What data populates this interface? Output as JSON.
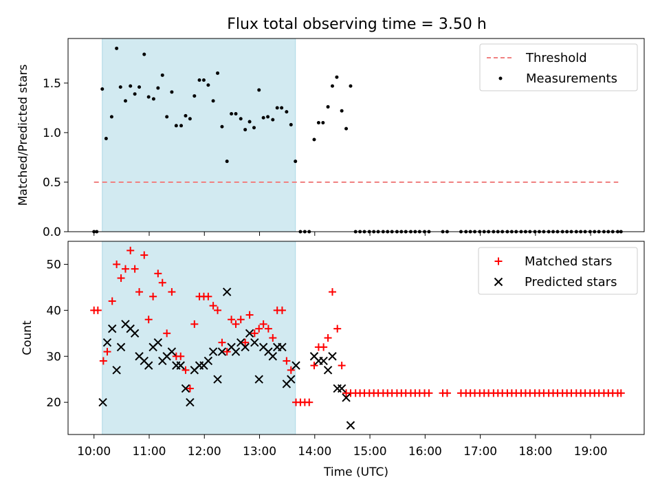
{
  "title": "Flux total observing time = 3.50 h",
  "colors": {
    "threshold": "#f08080",
    "measure": "#000000",
    "matched": "#ff0000",
    "predicted": "#000000",
    "shade": "#add8e6"
  },
  "chart_data": [
    {
      "type": "scatter",
      "ylabel": "Matched/Predicted stars",
      "ylim": [
        0,
        1.95
      ],
      "yticks": [
        {
          "v": 0.0,
          "label": "0.0"
        },
        {
          "v": 0.5,
          "label": "0.5"
        },
        {
          "v": 1.0,
          "label": "1.0"
        },
        {
          "v": 1.5,
          "label": "1.5"
        }
      ],
      "legend": {
        "position": "top-right",
        "threshold_label": "Threshold",
        "measure_label": "Measurements"
      },
      "threshold": {
        "value": 0.5,
        "x_start": 10.0,
        "x_end": 19.5
      },
      "shaded_interval": [
        10.15,
        13.65
      ],
      "measurements": [
        [
          10.0,
          0
        ],
        [
          10.05,
          0
        ],
        [
          10.15,
          1.44
        ],
        [
          10.22,
          0.94
        ],
        [
          10.32,
          1.16
        ],
        [
          10.41,
          1.85
        ],
        [
          10.48,
          1.46
        ],
        [
          10.57,
          1.32
        ],
        [
          10.66,
          1.47
        ],
        [
          10.74,
          1.39
        ],
        [
          10.82,
          1.46
        ],
        [
          10.91,
          1.79
        ],
        [
          10.99,
          1.36
        ],
        [
          11.08,
          1.34
        ],
        [
          11.16,
          1.45
        ],
        [
          11.24,
          1.58
        ],
        [
          11.32,
          1.16
        ],
        [
          11.41,
          1.41
        ],
        [
          11.49,
          1.07
        ],
        [
          11.58,
          1.07
        ],
        [
          11.66,
          1.17
        ],
        [
          11.74,
          1.14
        ],
        [
          11.82,
          1.37
        ],
        [
          11.91,
          1.53
        ],
        [
          11.99,
          1.53
        ],
        [
          12.07,
          1.48
        ],
        [
          12.16,
          1.32
        ],
        [
          12.24,
          1.6
        ],
        [
          12.32,
          1.06
        ],
        [
          12.41,
          0.71
        ],
        [
          12.49,
          1.19
        ],
        [
          12.57,
          1.19
        ],
        [
          12.66,
          1.14
        ],
        [
          12.74,
          1.03
        ],
        [
          12.82,
          1.11
        ],
        [
          12.9,
          1.05
        ],
        [
          12.99,
          1.43
        ],
        [
          13.07,
          1.15
        ],
        [
          13.15,
          1.16
        ],
        [
          13.24,
          1.13
        ],
        [
          13.32,
          1.25
        ],
        [
          13.4,
          1.25
        ],
        [
          13.49,
          1.21
        ],
        [
          13.57,
          1.08
        ],
        [
          13.65,
          0.71
        ],
        [
          13.74,
          0
        ],
        [
          13.82,
          0
        ],
        [
          13.9,
          0
        ],
        [
          13.99,
          0.93
        ],
        [
          14.07,
          1.1
        ],
        [
          14.15,
          1.1
        ],
        [
          14.24,
          1.26
        ],
        [
          14.32,
          1.47
        ],
        [
          14.4,
          1.56
        ],
        [
          14.49,
          1.22
        ],
        [
          14.57,
          1.04
        ],
        [
          14.65,
          1.47
        ],
        [
          14.74,
          0
        ],
        [
          14.82,
          0
        ],
        [
          14.9,
          0
        ],
        [
          14.99,
          0
        ],
        [
          15.07,
          0
        ],
        [
          15.15,
          0
        ],
        [
          15.24,
          0
        ],
        [
          15.32,
          0
        ],
        [
          15.4,
          0
        ],
        [
          15.49,
          0
        ],
        [
          15.57,
          0
        ],
        [
          15.65,
          0
        ],
        [
          15.74,
          0
        ],
        [
          15.82,
          0
        ],
        [
          15.9,
          0
        ],
        [
          15.99,
          0
        ],
        [
          16.07,
          0
        ],
        [
          16.32,
          0
        ],
        [
          16.4,
          0
        ],
        [
          16.65,
          0
        ],
        [
          16.74,
          0
        ],
        [
          16.82,
          0
        ],
        [
          16.9,
          0
        ],
        [
          16.99,
          0
        ],
        [
          17.07,
          0
        ],
        [
          17.15,
          0
        ],
        [
          17.24,
          0
        ],
        [
          17.32,
          0
        ],
        [
          17.4,
          0
        ],
        [
          17.49,
          0
        ],
        [
          17.57,
          0
        ],
        [
          17.65,
          0
        ],
        [
          17.74,
          0
        ],
        [
          17.82,
          0
        ],
        [
          17.9,
          0
        ],
        [
          17.99,
          0
        ],
        [
          18.07,
          0
        ],
        [
          18.15,
          0
        ],
        [
          18.24,
          0
        ],
        [
          18.32,
          0
        ],
        [
          18.4,
          0
        ],
        [
          18.49,
          0
        ],
        [
          18.57,
          0
        ],
        [
          18.65,
          0
        ],
        [
          18.74,
          0
        ],
        [
          18.82,
          0
        ],
        [
          18.9,
          0
        ],
        [
          18.99,
          0
        ],
        [
          19.07,
          0
        ],
        [
          19.15,
          0
        ],
        [
          19.24,
          0
        ],
        [
          19.32,
          0
        ],
        [
          19.4,
          0
        ],
        [
          19.49,
          0
        ],
        [
          19.55,
          0
        ]
      ]
    },
    {
      "type": "scatter",
      "ylabel": "Count",
      "xlabel": "Time (UTC)",
      "ylim": [
        13,
        55
      ],
      "yticks": [
        {
          "v": 20,
          "label": "20"
        },
        {
          "v": 30,
          "label": "30"
        },
        {
          "v": 40,
          "label": "40"
        },
        {
          "v": 50,
          "label": "50"
        }
      ],
      "xticks": [
        {
          "v": 10,
          "label": "10:00"
        },
        {
          "v": 11,
          "label": "11:00"
        },
        {
          "v": 12,
          "label": "12:00"
        },
        {
          "v": 13,
          "label": "13:00"
        },
        {
          "v": 14,
          "label": "14:00"
        },
        {
          "v": 15,
          "label": "15:00"
        },
        {
          "v": 16,
          "label": "16:00"
        },
        {
          "v": 17,
          "label": "17:00"
        },
        {
          "v": 18,
          "label": "18:00"
        },
        {
          "v": 19,
          "label": "19:00"
        }
      ],
      "xlim": [
        9.53,
        19.97
      ],
      "legend": {
        "position": "top-right",
        "matched_label": "Matched stars",
        "predicted_label": "Predicted stars"
      },
      "shaded_interval": [
        10.15,
        13.65
      ],
      "matched": [
        [
          10.0,
          40
        ],
        [
          10.07,
          40
        ],
        [
          10.17,
          29
        ],
        [
          10.24,
          31
        ],
        [
          10.33,
          42
        ],
        [
          10.41,
          50
        ],
        [
          10.49,
          47
        ],
        [
          10.57,
          49
        ],
        [
          10.66,
          53
        ],
        [
          10.74,
          49
        ],
        [
          10.82,
          44
        ],
        [
          10.91,
          52
        ],
        [
          10.99,
          38
        ],
        [
          11.07,
          43
        ],
        [
          11.16,
          48
        ],
        [
          11.24,
          46
        ],
        [
          11.32,
          35
        ],
        [
          11.41,
          44
        ],
        [
          11.49,
          30
        ],
        [
          11.57,
          30
        ],
        [
          11.66,
          27
        ],
        [
          11.74,
          23
        ],
        [
          11.82,
          37
        ],
        [
          11.91,
          43
        ],
        [
          11.99,
          43
        ],
        [
          12.07,
          43
        ],
        [
          12.16,
          41
        ],
        [
          12.24,
          40
        ],
        [
          12.32,
          33
        ],
        [
          12.41,
          31
        ],
        [
          12.49,
          38
        ],
        [
          12.57,
          37
        ],
        [
          12.66,
          38
        ],
        [
          12.74,
          33
        ],
        [
          12.82,
          39
        ],
        [
          12.91,
          35
        ],
        [
          12.99,
          36
        ],
        [
          13.07,
          37
        ],
        [
          13.16,
          36
        ],
        [
          13.24,
          34
        ],
        [
          13.32,
          40
        ],
        [
          13.41,
          40
        ],
        [
          13.49,
          29
        ],
        [
          13.57,
          27
        ],
        [
          13.66,
          20
        ],
        [
          13.74,
          20
        ],
        [
          13.82,
          20
        ],
        [
          13.9,
          20
        ],
        [
          13.99,
          28
        ],
        [
          14.07,
          32
        ],
        [
          14.16,
          32
        ],
        [
          14.24,
          34
        ],
        [
          14.32,
          44
        ],
        [
          14.41,
          36
        ],
        [
          14.49,
          28
        ],
        [
          14.57,
          22
        ],
        [
          14.65,
          22
        ],
        [
          14.74,
          22
        ],
        [
          14.82,
          22
        ],
        [
          14.9,
          22
        ],
        [
          14.99,
          22
        ],
        [
          15.07,
          22
        ],
        [
          15.15,
          22
        ],
        [
          15.24,
          22
        ],
        [
          15.32,
          22
        ],
        [
          15.4,
          22
        ],
        [
          15.49,
          22
        ],
        [
          15.57,
          22
        ],
        [
          15.65,
          22
        ],
        [
          15.74,
          22
        ],
        [
          15.82,
          22
        ],
        [
          15.9,
          22
        ],
        [
          15.99,
          22
        ],
        [
          16.07,
          22
        ],
        [
          16.32,
          22
        ],
        [
          16.4,
          22
        ],
        [
          16.65,
          22
        ],
        [
          16.74,
          22
        ],
        [
          16.82,
          22
        ],
        [
          16.9,
          22
        ],
        [
          16.99,
          22
        ],
        [
          17.07,
          22
        ],
        [
          17.15,
          22
        ],
        [
          17.24,
          22
        ],
        [
          17.32,
          22
        ],
        [
          17.4,
          22
        ],
        [
          17.49,
          22
        ],
        [
          17.57,
          22
        ],
        [
          17.65,
          22
        ],
        [
          17.74,
          22
        ],
        [
          17.82,
          22
        ],
        [
          17.9,
          22
        ],
        [
          17.99,
          22
        ],
        [
          18.07,
          22
        ],
        [
          18.15,
          22
        ],
        [
          18.24,
          22
        ],
        [
          18.32,
          22
        ],
        [
          18.4,
          22
        ],
        [
          18.49,
          22
        ],
        [
          18.57,
          22
        ],
        [
          18.65,
          22
        ],
        [
          18.74,
          22
        ],
        [
          18.82,
          22
        ],
        [
          18.9,
          22
        ],
        [
          18.99,
          22
        ],
        [
          19.07,
          22
        ],
        [
          19.15,
          22
        ],
        [
          19.24,
          22
        ],
        [
          19.32,
          22
        ],
        [
          19.4,
          22
        ],
        [
          19.49,
          22
        ],
        [
          19.55,
          22
        ]
      ],
      "predicted": [
        [
          10.16,
          20
        ],
        [
          10.24,
          33
        ],
        [
          10.33,
          36
        ],
        [
          10.41,
          27
        ],
        [
          10.49,
          32
        ],
        [
          10.57,
          37
        ],
        [
          10.66,
          36
        ],
        [
          10.74,
          35
        ],
        [
          10.82,
          30
        ],
        [
          10.91,
          29
        ],
        [
          10.99,
          28
        ],
        [
          11.07,
          32
        ],
        [
          11.16,
          33
        ],
        [
          11.24,
          29
        ],
        [
          11.32,
          30
        ],
        [
          11.41,
          31
        ],
        [
          11.49,
          28
        ],
        [
          11.57,
          28
        ],
        [
          11.66,
          23
        ],
        [
          11.74,
          20
        ],
        [
          11.82,
          27
        ],
        [
          11.91,
          28
        ],
        [
          11.99,
          28
        ],
        [
          12.07,
          29
        ],
        [
          12.16,
          31
        ],
        [
          12.24,
          25
        ],
        [
          12.32,
          31
        ],
        [
          12.41,
          44
        ],
        [
          12.49,
          32
        ],
        [
          12.57,
          31
        ],
        [
          12.66,
          33
        ],
        [
          12.74,
          32
        ],
        [
          12.82,
          35
        ],
        [
          12.91,
          33
        ],
        [
          12.99,
          25
        ],
        [
          13.07,
          32
        ],
        [
          13.16,
          31
        ],
        [
          13.24,
          30
        ],
        [
          13.32,
          32
        ],
        [
          13.41,
          32
        ],
        [
          13.49,
          24
        ],
        [
          13.57,
          25
        ],
        [
          13.66,
          28
        ],
        [
          13.99,
          30
        ],
        [
          14.07,
          29
        ],
        [
          14.16,
          29
        ],
        [
          14.24,
          27
        ],
        [
          14.32,
          30
        ],
        [
          14.41,
          23
        ],
        [
          14.49,
          23
        ],
        [
          14.57,
          21
        ],
        [
          14.65,
          15
        ]
      ]
    }
  ]
}
